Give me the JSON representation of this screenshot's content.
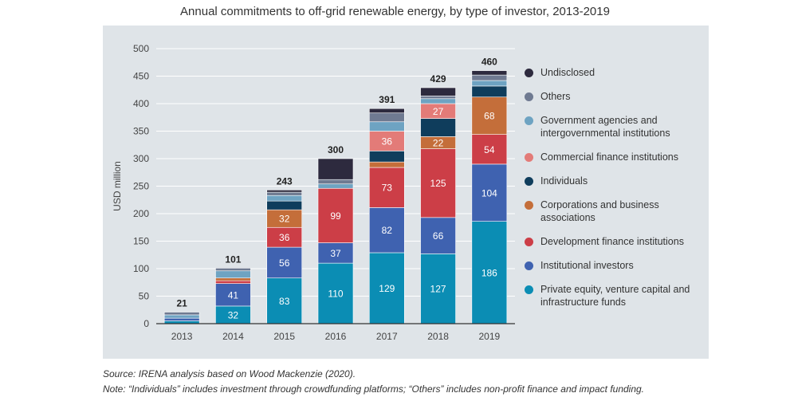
{
  "title": "Annual commitments to off-grid renewable energy, by type of investor, 2013-2019",
  "source": "Source: IRENA analysis based on Wood Mackenzie (2020).",
  "note": "Note: “Individuals” includes investment through crowdfunding platforms; “Others” includes non-profit finance and impact funding.",
  "chart_data": {
    "type": "bar",
    "stacked": true,
    "ylabel": "USD million",
    "ylim": [
      0,
      500
    ],
    "yticks": [
      0,
      50,
      100,
      150,
      200,
      250,
      300,
      350,
      400,
      450,
      500
    ],
    "grid": true,
    "legend_position": "right",
    "categories": [
      "2013",
      "2014",
      "2015",
      "2016",
      "2017",
      "2018",
      "2019"
    ],
    "totals": [
      21,
      101,
      243,
      300,
      391,
      429,
      460
    ],
    "series": [
      {
        "name": "Private equity, venture capital and infrastructure funds",
        "color": "#0b8db4",
        "values": [
          5,
          32,
          83,
          110,
          129,
          127,
          186
        ],
        "labels": [
          null,
          "32",
          "83",
          "110",
          "129",
          "127",
          "186"
        ]
      },
      {
        "name": "Institutional investors",
        "color": "#3f62b0",
        "values": [
          5,
          41,
          56,
          37,
          82,
          66,
          104
        ],
        "labels": [
          null,
          "41",
          "56",
          "37",
          "82",
          "66",
          "104"
        ]
      },
      {
        "name": "Development finance institutions",
        "color": "#cc3e47",
        "values": [
          0,
          5,
          36,
          99,
          73,
          125,
          54
        ],
        "labels": [
          null,
          null,
          "36",
          "99",
          "73",
          "125",
          "54"
        ]
      },
      {
        "name": "Corporations and business associations",
        "color": "#c46e3a",
        "values": [
          0,
          5,
          32,
          0,
          10,
          22,
          68
        ],
        "labels": [
          null,
          null,
          "32",
          null,
          null,
          "22",
          "68"
        ]
      },
      {
        "name": "Individuals",
        "color": "#0f3d5c",
        "values": [
          0,
          0,
          16,
          0,
          20,
          33,
          20
        ],
        "labels": [
          null,
          null,
          null,
          null,
          null,
          null,
          null
        ]
      },
      {
        "name": "Commercial finance institutions",
        "color": "#e37b78",
        "values": [
          0,
          0,
          0,
          0,
          36,
          27,
          0
        ],
        "labels": [
          null,
          null,
          null,
          null,
          "36",
          "27",
          null
        ]
      },
      {
        "name": "Government agencies and intergovernmental institutions",
        "color": "#6ea3c2",
        "values": [
          6,
          13,
          10,
          8,
          17,
          9,
          10
        ],
        "labels": [
          null,
          null,
          null,
          null,
          null,
          null,
          null
        ]
      },
      {
        "name": "Others",
        "color": "#6f7a91",
        "values": [
          5,
          5,
          6,
          8,
          16,
          5,
          10
        ],
        "labels": [
          null,
          null,
          null,
          null,
          null,
          null,
          null
        ]
      },
      {
        "name": "Undisclosed",
        "color": "#2d2a3e",
        "values": [
          0,
          0,
          4,
          38,
          8,
          15,
          8
        ],
        "labels": [
          null,
          null,
          null,
          null,
          null,
          null,
          null
        ]
      }
    ]
  }
}
